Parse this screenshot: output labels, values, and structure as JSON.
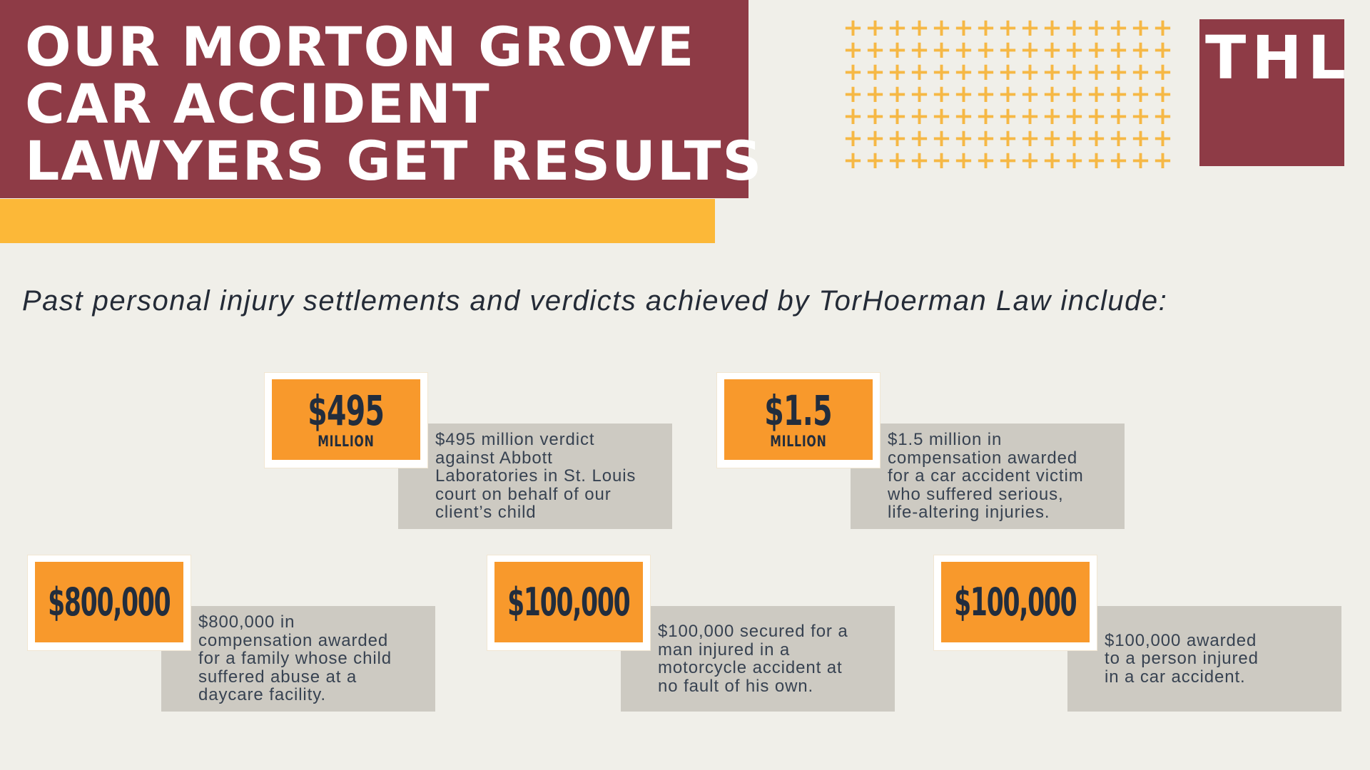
{
  "page": {
    "background_color": "#f0efe9"
  },
  "header": {
    "title_lines": [
      "OUR MORTON GROVE",
      "CAR ACCIDENT",
      "LAWYERS GET RESULTS"
    ],
    "bg_color": "#8e3b46",
    "text_color": "#ffffff",
    "accent_bar_color": "#fcb838"
  },
  "logo": {
    "text": "THL",
    "bg_color": "#8e3b46",
    "text_color": "#ffffff"
  },
  "decor": {
    "plus_glyph": "+",
    "plus_color": "#f6b845",
    "plus_rows": 7,
    "plus_cols": 15
  },
  "intro": {
    "text": "Past personal injury settlements and verdicts achieved by TorHoerman Law include:"
  },
  "cards": [
    {
      "amount": "$495",
      "unit": "MILLION",
      "description": "$495 million verdict\nagainst Abbott\nLaboratories in St. Louis\ncourt on behalf of our\nclient’s child"
    },
    {
      "amount": "$1.5",
      "unit": "MILLION",
      "description": "$1.5 million in\ncompensation awarded\nfor a car accident victim\nwho suffered serious,\nlife-altering injuries."
    },
    {
      "amount": "$800,000",
      "unit": "",
      "description": "$800,000 in\ncompensation awarded\nfor a family whose child\nsuffered abuse at a\ndaycare facility."
    },
    {
      "amount": "$100,000",
      "unit": "",
      "description": "$100,000 secured for a\nman injured in a\nmotorcycle accident at\nno fault of his own."
    },
    {
      "amount": "$100,000",
      "unit": "",
      "description": "$100,000 awarded\nto a person injured\nin a car accident."
    }
  ],
  "palette": {
    "amount_box_bg": "#f8992c",
    "amount_text": "#222d3d",
    "description_bg": "#cdcac2",
    "description_text": "#374251",
    "card_frame": "#ffffff",
    "intro_text": "#242b37"
  }
}
